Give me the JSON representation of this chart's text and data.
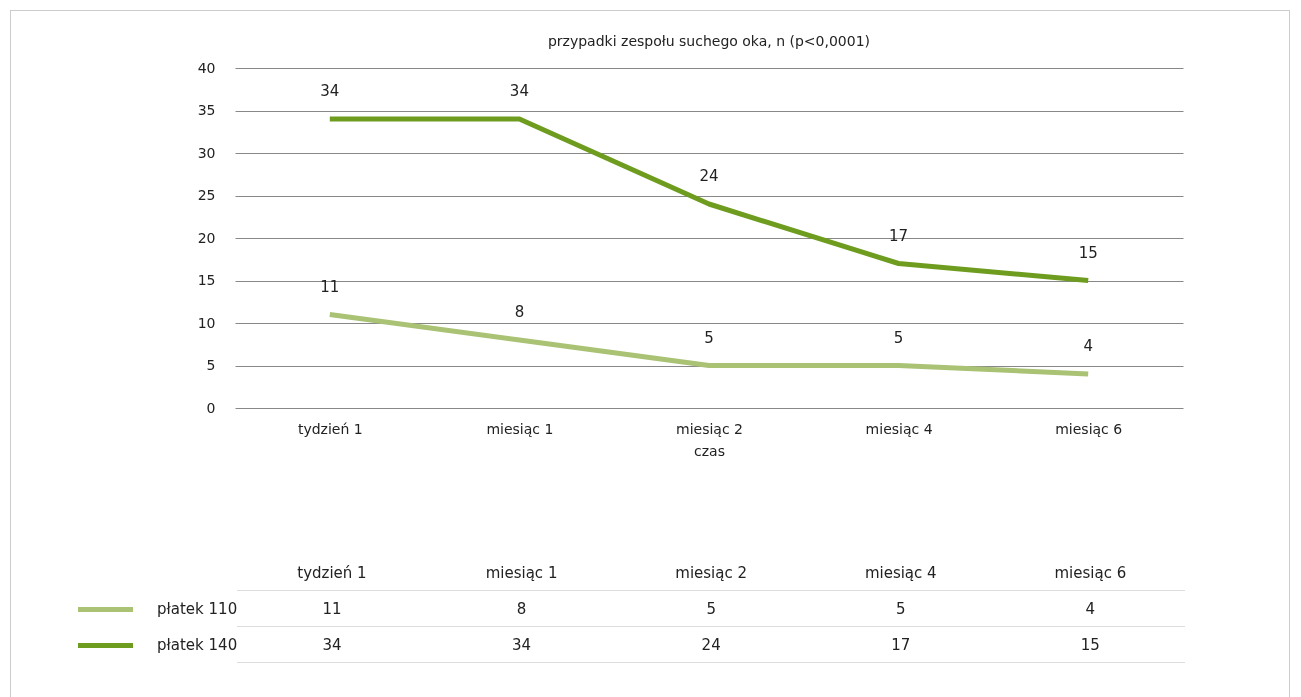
{
  "chart_data": {
    "type": "line",
    "title": "przypadki zespołu suchego oka, n (p<0,0001)",
    "xlabel": "czas",
    "categories": [
      "tydzień 1",
      "miesiąc 1",
      "miesiąc 2",
      "miesiąc 4",
      "miesiąc 6"
    ],
    "series": [
      {
        "name": "płatek 110",
        "color": "#a9c274",
        "values": [
          11,
          8,
          5,
          5,
          4
        ]
      },
      {
        "name": "płatek 140",
        "color": "#6e9c1e",
        "values": [
          34,
          34,
          24,
          17,
          15
        ]
      }
    ],
    "annotations": [
      {
        "text": "11",
        "x": "tydzień 1",
        "y": 11
      },
      {
        "text": "8",
        "x": "miesiąc 1",
        "y": 8
      },
      {
        "text": "5",
        "x": "miesiąc 2",
        "y": 5
      },
      {
        "text": "5",
        "x": "miesiąc 4",
        "y": 5
      },
      {
        "text": "4",
        "x": "miesiąc 6",
        "y": 4
      },
      {
        "text": "34",
        "x": "tydzień 1",
        "y": 34
      },
      {
        "text": "34",
        "x": "miesiąc 1",
        "y": 34
      },
      {
        "text": "24",
        "x": "miesiąc 2",
        "y": 24
      },
      {
        "text": "17",
        "x": "miesiąc 4",
        "y": 17
      },
      {
        "text": "15",
        "x": "miesiąc 6",
        "y": 15
      }
    ],
    "ylim": [
      0,
      40
    ],
    "yticks": [
      0,
      5,
      10,
      15,
      20,
      25,
      30,
      35,
      40
    ],
    "grid": "y",
    "data_labels": true,
    "legend": "bottom"
  }
}
